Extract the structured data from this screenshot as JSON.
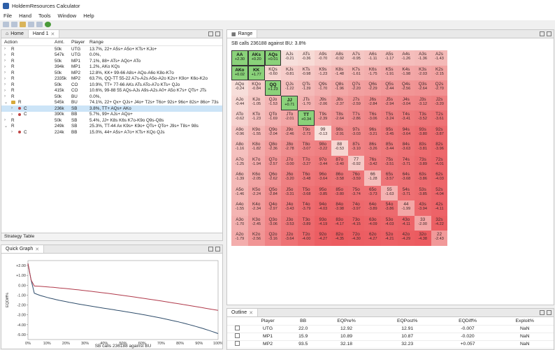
{
  "app": {
    "title": "HoldemResources Calculator"
  },
  "menu": [
    "File",
    "Hand",
    "Tools",
    "Window",
    "Help"
  ],
  "left_tabs": {
    "home": "Home",
    "hand": "Hand 1"
  },
  "actions_table": {
    "headers": {
      "action": "Action",
      "amt": "Amt.",
      "player": "Player",
      "range": "Range"
    },
    "rows": [
      {
        "action": "R",
        "amt": "50k",
        "player": "UTG",
        "range": "13.7%, 22+ A5s+ A5o+ KTs+ KJo+"
      },
      {
        "action": "R",
        "amt": "547k",
        "player": "UTG",
        "range": "0.0%,"
      },
      {
        "action": "R",
        "amt": "50k",
        "player": "MP1",
        "range": "7.1%, 88+ ATs+ AQo+ ATo"
      },
      {
        "action": "R",
        "amt": "394k",
        "player": "MP1",
        "range": "1.2%, AKo KQs"
      },
      {
        "action": "R",
        "amt": "50k",
        "player": "MP2",
        "range": "12.8%, KK+ 99-66 A8s+ AQo-A6o K8o-K7o"
      },
      {
        "action": "R",
        "amt": "2335k",
        "player": "MP2",
        "range": "63.7%, QQ-TT 55-22 A7s-A2s A5o-A2o K2s+ K9o+ K6o-K2o"
      },
      {
        "action": "R",
        "amt": "50k",
        "player": "CO",
        "range": "10.9%, TT+ 77-66 AKs ATs ATo-A7o KTs+ QJo"
      },
      {
        "action": "R",
        "amt": "415k",
        "player": "CO",
        "range": "10.6%, 99-88 55 AQs-AJs A9s-A2s A0+ A5o K7s+ QTs+ JTs"
      },
      {
        "action": "R",
        "amt": "50k",
        "player": "BU",
        "range": "0.0%,"
      },
      {
        "action": "R",
        "amt": "545k",
        "player": "BU",
        "range": "74.1%, 22+ Qx+ QJs+ J4o+ T2s+ T6o+ 92s+ 96o+ 82s+ 86o+ 73s"
      },
      {
        "action": "C",
        "amt": "236k",
        "player": "SB",
        "range": "3.8%, TT+ AQs+ AKo"
      },
      {
        "action": "C",
        "amt": "390k",
        "player": "BB",
        "range": "5.7%, 99+ AJs+ AQo+"
      },
      {
        "action": "R",
        "amt": "50k",
        "player": "SB",
        "range": "5.4%, JJ+ K8s K6s K7o-K9o Q9s-Q8s"
      },
      {
        "action": "R",
        "amt": "249k",
        "player": "SB",
        "range": "25.3%, TT-44 Ax K9s+ K9o+ QTs+ QTo+ J9s+ T8s+ 98s"
      },
      {
        "action": "C",
        "amt": "224k",
        "player": "BB",
        "range": "15.0%, 44+ A5s+ A7o+ KTs+ KQo QJs"
      }
    ]
  },
  "strategy_tab": "Strategy Table",
  "graph": {
    "tab": "Quick Graph",
    "y_title": "EQDiff%",
    "x_title": "SB calls 236188 against BU",
    "y_ticks": [
      "+2.00",
      "+1.00",
      "0.00",
      "-1.00",
      "-2.00",
      "-3.00",
      "-4.00",
      "-5.00"
    ],
    "x_ticks": [
      "0%",
      "10%",
      "20%",
      "30%",
      "40%",
      "50%",
      "60%",
      "70%",
      "80%",
      "90%",
      "100%"
    ]
  },
  "range_pane": {
    "tab": "Range",
    "caption": "SB calls 236188 against BU: 3.8%"
  },
  "grid_rows": [
    [
      [
        "AA",
        "+2.30"
      ],
      [
        "AKs",
        "+0.20"
      ],
      [
        "AQs",
        "+0.01"
      ],
      [
        "AJs",
        "-0.21"
      ],
      [
        "ATs",
        "-0.36"
      ],
      [
        "A9s",
        "-0.70"
      ],
      [
        "A8s",
        "-0.92"
      ],
      [
        "A7s",
        "-0.95"
      ],
      [
        "A6s",
        "-1.11"
      ],
      [
        "A5s",
        "-1.17"
      ],
      [
        "A4s",
        "-1.26"
      ],
      [
        "A3s",
        "-1.36"
      ],
      [
        "A2s",
        "-1.43"
      ]
    ],
    [
      [
        "AKo",
        "+0.02"
      ],
      [
        "KK",
        "+1.77"
      ],
      [
        "KQs",
        "-0.60"
      ],
      [
        "KJs",
        "-0.81"
      ],
      [
        "KTs",
        "-0.98"
      ],
      [
        "K9s",
        "-1.23"
      ],
      [
        "K8s",
        "-1.48"
      ],
      [
        "K7s",
        "-1.61"
      ],
      [
        "K6s",
        "-1.75"
      ],
      [
        "K5s",
        "-1.91"
      ],
      [
        "K4s",
        "-1.98"
      ],
      [
        "K3s",
        "-2.03"
      ],
      [
        "K2s",
        "-2.15"
      ]
    ],
    [
      [
        "AQo",
        "-0.24"
      ],
      [
        "KQo",
        "-0.84"
      ],
      [
        "QQ",
        "+1.23"
      ],
      [
        "QJs",
        "-1.22"
      ],
      [
        "QTs",
        "-1.39"
      ],
      [
        "Q9s",
        "-1.70"
      ],
      [
        "Q8s",
        "-1.96"
      ],
      [
        "Q7s",
        "-2.20"
      ],
      [
        "Q6s",
        "-2.29"
      ],
      [
        "Q5s",
        "-2.44"
      ],
      [
        "Q4s",
        "-2.56"
      ],
      [
        "Q3s",
        "-2.64"
      ],
      [
        "Q2s",
        "-2.70"
      ]
    ],
    [
      [
        "AJo",
        "-0.44"
      ],
      [
        "KJo",
        "-1.05"
      ],
      [
        "QJo",
        "-1.53"
      ],
      [
        "JJ",
        "+0.71"
      ],
      [
        "JTs",
        "-1.70"
      ],
      [
        "J9s",
        "-2.06"
      ],
      [
        "J8s",
        "-2.37"
      ],
      [
        "J7s",
        "-2.59"
      ],
      [
        "J6s",
        "-2.84"
      ],
      [
        "J5s",
        "-2.94"
      ],
      [
        "J4s",
        "-3.04"
      ],
      [
        "J3s",
        "-3.12"
      ],
      [
        "J2s",
        "-3.20"
      ]
    ],
    [
      [
        "ATo",
        "-0.62"
      ],
      [
        "KTo",
        "-1.23"
      ],
      [
        "QTo",
        "-1.69"
      ],
      [
        "JTo",
        "-2.01"
      ],
      [
        "TT",
        "+0.34"
      ],
      [
        "T9s",
        "-2.39"
      ],
      [
        "T8s",
        "-2.64"
      ],
      [
        "T7s",
        "-2.86"
      ],
      [
        "T6s",
        "-3.06"
      ],
      [
        "T5s",
        "-3.24"
      ],
      [
        "T4s",
        "-3.41"
      ],
      [
        "T3s",
        "-3.52"
      ],
      [
        "T2s",
        "-3.61"
      ]
    ],
    [
      [
        "A9o",
        "-0.96"
      ],
      [
        "K9o",
        "-1.55"
      ],
      [
        "Q9o",
        "-2.04"
      ],
      [
        "J9o",
        "-2.46"
      ],
      [
        "T9o",
        "-2.73"
      ],
      [
        "99",
        "-0.13"
      ],
      [
        "98s",
        "-2.91"
      ],
      [
        "97s",
        "-3.03"
      ],
      [
        "96s",
        "-3.21"
      ],
      [
        "95s",
        "-3.45"
      ],
      [
        "94s",
        "-3.64"
      ],
      [
        "93s",
        "-3.80"
      ],
      [
        "92s",
        "-3.87"
      ]
    ],
    [
      [
        "A8o",
        "-1.16"
      ],
      [
        "K8o",
        "-1.82"
      ],
      [
        "Q8o",
        "-2.36"
      ],
      [
        "J8o",
        "-2.78"
      ],
      [
        "T8o",
        "-3.07"
      ],
      [
        "98o",
        "-3.22"
      ],
      [
        "88",
        "-0.53"
      ],
      [
        "87s",
        "-3.10"
      ],
      [
        "86s",
        "-3.26"
      ],
      [
        "85s",
        "-3.44"
      ],
      [
        "84s",
        "-3.63"
      ],
      [
        "83s",
        "-3.81"
      ],
      [
        "82s",
        "-3.96"
      ]
    ],
    [
      [
        "A7o",
        "-1.25"
      ],
      [
        "K7o",
        "-1.94"
      ],
      [
        "Q7o",
        "-2.57"
      ],
      [
        "J7o",
        "-3.00"
      ],
      [
        "T7o",
        "-3.27"
      ],
      [
        "97o",
        "-3.44"
      ],
      [
        "87o",
        "-3.40"
      ],
      [
        "77",
        "-0.92"
      ],
      [
        "76s",
        "-3.42"
      ],
      [
        "75s",
        "-3.51"
      ],
      [
        "74s",
        "-3.71"
      ],
      [
        "73s",
        "-3.89"
      ],
      [
        "72s",
        "-4.01"
      ]
    ],
    [
      [
        "A6o",
        "-1.39"
      ],
      [
        "K6o",
        "-2.05"
      ],
      [
        "Q6o",
        "-2.62"
      ],
      [
        "J6o",
        "-3.20"
      ],
      [
        "T6o",
        "-3.48"
      ],
      [
        "96o",
        "-3.64"
      ],
      [
        "86o",
        "-3.58"
      ],
      [
        "76o",
        "-3.59"
      ],
      [
        "66",
        "-1.28"
      ],
      [
        "65s",
        "-3.57"
      ],
      [
        "64s",
        "-3.68"
      ],
      [
        "63s",
        "-3.86"
      ],
      [
        "62s",
        "-4.03"
      ]
    ],
    [
      [
        "A5o",
        "-1.46"
      ],
      [
        "K5o",
        "-2.24"
      ],
      [
        "Q5o",
        "-2.84"
      ],
      [
        "J5o",
        "-3.31"
      ],
      [
        "T5o",
        "-3.68"
      ],
      [
        "95o",
        "-3.85"
      ],
      [
        "85o",
        "-3.80"
      ],
      [
        "75o",
        "-3.74"
      ],
      [
        "65o",
        "-3.73"
      ],
      [
        "55",
        "-1.63"
      ],
      [
        "54s",
        "-3.71"
      ],
      [
        "53s",
        "-3.85"
      ],
      [
        "52s",
        "-4.04"
      ]
    ],
    [
      [
        "A4o",
        "-1.55"
      ],
      [
        "K4o",
        "-2.34"
      ],
      [
        "Q4o",
        "-2.97"
      ],
      [
        "J4o",
        "-3.43"
      ],
      [
        "T4o",
        "-3.79"
      ],
      [
        "94o",
        "-4.03"
      ],
      [
        "84o",
        "-3.98"
      ],
      [
        "74o",
        "-3.97"
      ],
      [
        "64o",
        "-3.89"
      ],
      [
        "54o",
        "-3.86"
      ],
      [
        "44",
        "-1.99"
      ],
      [
        "43s",
        "-3.94"
      ],
      [
        "42s",
        "-4.11"
      ]
    ],
    [
      [
        "A3o",
        "-1.70"
      ],
      [
        "K3o",
        "-2.45"
      ],
      [
        "Q3o",
        "-3.06"
      ],
      [
        "J3o",
        "-3.53"
      ],
      [
        "T3o",
        "-3.89"
      ],
      [
        "93o",
        "-4.19"
      ],
      [
        "83o",
        "-4.17"
      ],
      [
        "73o",
        "-4.15"
      ],
      [
        "63o",
        "-4.09"
      ],
      [
        "53o",
        "-4.03"
      ],
      [
        "43o",
        "-4.11"
      ],
      [
        "33",
        "-2.00"
      ],
      [
        "32s",
        "-4.22"
      ]
    ],
    [
      [
        "A2o",
        "-1.79"
      ],
      [
        "K2o",
        "-2.56"
      ],
      [
        "Q2o",
        "-3.16"
      ],
      [
        "J2o",
        "-3.64"
      ],
      [
        "T2o",
        "-4.00"
      ],
      [
        "92o",
        "-4.27"
      ],
      [
        "82o",
        "-4.35"
      ],
      [
        "72o",
        "-4.30"
      ],
      [
        "62o",
        "-4.27"
      ],
      [
        "52o",
        "-4.21"
      ],
      [
        "42o",
        "-4.29"
      ],
      [
        "32o",
        "-4.38"
      ],
      [
        "22",
        "-2.43"
      ]
    ]
  ],
  "outline": {
    "tab": "Outline",
    "headers": [
      "Player",
      "BB",
      "EQPre%",
      "EQPost%",
      "EQDiff%",
      "Exploit%"
    ],
    "rows": [
      [
        "UTG",
        "22.0",
        "12.92",
        "12.91",
        "-0.007",
        "NaN"
      ],
      [
        "MP1",
        "15.9",
        "10.89",
        "10.87",
        "-0.020",
        "NaN"
      ],
      [
        "MP2",
        "93.5",
        "32.18",
        "32.23",
        "+0.057",
        "NaN"
      ]
    ]
  },
  "colors": {
    "green_cell": "#8ad27a",
    "graph_line_red": "#b0394a",
    "graph_line_blue": "#2f4d6b"
  }
}
